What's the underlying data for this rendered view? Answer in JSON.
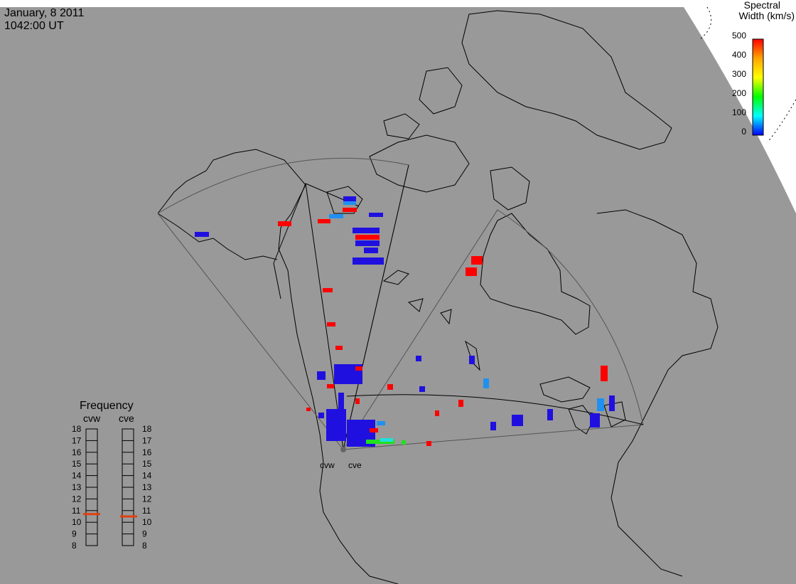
{
  "header": {
    "date": "January, 8 2011",
    "time": "1042:00 UT"
  },
  "colorbar": {
    "title_line1": "Spectral",
    "title_line2": "Width (km/s)",
    "ticks": [
      "500",
      "400",
      "300",
      "200",
      "100",
      "0"
    ],
    "stops": [
      "#ff0000",
      "#ffa500",
      "#ffff00",
      "#00ff00",
      "#00ffff",
      "#0000ff"
    ]
  },
  "frequency_panel": {
    "title": "Frequency",
    "radar_left": "cvw",
    "radar_right": "cve",
    "ticks": [
      "18",
      "17",
      "16",
      "15",
      "14",
      "13",
      "12",
      "11",
      "10",
      "9",
      "8"
    ],
    "cvw_value": 10.7,
    "cve_value": 10.5,
    "indicator_color": "#e04010"
  },
  "radars": {
    "west_label": "cvw",
    "east_label": "cve"
  },
  "colors": {
    "map_background": "#999999",
    "land_outline": "#000000",
    "fov_outline": "#555555",
    "red": "#ff0000",
    "blue": "#2010e0",
    "light_blue": "#2090f0",
    "green": "#20e020",
    "cyan": "#20e0e0"
  }
}
